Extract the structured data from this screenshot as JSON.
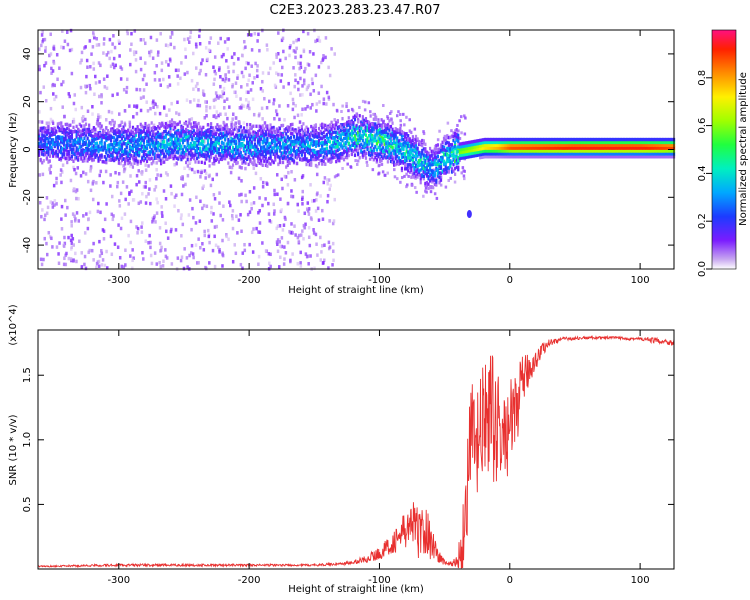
{
  "title": "C2E3.2023.283.23.47.R07",
  "chart_data": [
    {
      "type": "heatmap",
      "xlabel": "Height of straight line (km)",
      "ylabel": "Frequency (Hz)",
      "xlim": [
        -362,
        126
      ],
      "ylim": [
        -50,
        50
      ],
      "xticks": [
        -300,
        -200,
        -100,
        0,
        100
      ],
      "yticks": [
        -40,
        -20,
        0,
        20,
        40
      ],
      "xtick_labels": [
        "-300",
        "-200",
        "-100",
        "0",
        "100"
      ],
      "ytick_labels": [
        "-40",
        "-20",
        "0",
        "20",
        "40"
      ],
      "colorbar": {
        "label": "Normalized spectral amplitude",
        "range": [
          0,
          1
        ],
        "ticks": [
          0.0,
          0.2,
          0.4,
          0.6,
          0.8
        ],
        "tick_labels": [
          "0.0",
          "0.2",
          "0.4",
          "0.6",
          "0.8"
        ],
        "colormap": "rainbow"
      },
      "ridge": {
        "x": [
          -362,
          -300,
          -250,
          -200,
          -150,
          -135,
          -120,
          -100,
          -85,
          -70,
          -60,
          -55,
          -50,
          -45,
          -40,
          -30,
          -20,
          -10,
          0,
          50,
          100,
          126
        ],
        "frequency": [
          3,
          2,
          3,
          2,
          2,
          3,
          6,
          4,
          1,
          -4,
          -8,
          -6,
          -3,
          -2,
          -1,
          0,
          1,
          1,
          1,
          1,
          1,
          1
        ],
        "amplitude": [
          0.3,
          0.35,
          0.4,
          0.35,
          0.35,
          0.4,
          0.5,
          0.5,
          0.45,
          0.45,
          0.4,
          0.45,
          0.45,
          0.5,
          0.6,
          0.65,
          0.75,
          0.8,
          0.9,
          0.95,
          0.95,
          0.9
        ]
      },
      "grid": false
    },
    {
      "type": "line",
      "xlabel": "Height of straight line (km)",
      "ylabel": "SNR (10 * v/v)",
      "y_multiplier_label": "(x10^4)",
      "xlim": [
        -362,
        126
      ],
      "ylim": [
        0,
        1.85
      ],
      "xticks": [
        -300,
        -200,
        -100,
        0,
        100
      ],
      "yticks": [
        0.5,
        1.0,
        1.5
      ],
      "xtick_labels": [
        "-300",
        "-200",
        "-100",
        "0",
        "100"
      ],
      "ytick_labels": [
        "0.5",
        "1.0",
        "1.5"
      ],
      "series": [
        {
          "color": "#e8302f",
          "x": [
            -362,
            -300,
            -200,
            -150,
            -130,
            -120,
            -110,
            -100,
            -90,
            -80,
            -75,
            -70,
            -65,
            -60,
            -55,
            -50,
            -45,
            -40,
            -35,
            -30,
            -25,
            -20,
            -15,
            -10,
            -5,
            0,
            5,
            10,
            15,
            20,
            25,
            30,
            40,
            60,
            80,
            100,
            110,
            120,
            126
          ],
          "y": [
            0.02,
            0.03,
            0.03,
            0.03,
            0.04,
            0.05,
            0.08,
            0.12,
            0.2,
            0.3,
            0.35,
            0.28,
            0.3,
            0.22,
            0.1,
            0.05,
            0.04,
            0.06,
            0.3,
            1.0,
            0.95,
            1.15,
            1.2,
            1.1,
            1.0,
            1.1,
            1.25,
            1.45,
            1.55,
            1.62,
            1.7,
            1.75,
            1.78,
            1.79,
            1.79,
            1.78,
            1.77,
            1.76,
            1.75
          ],
          "noise": [
            0.005,
            0.01,
            0.008,
            0.008,
            0.01,
            0.015,
            0.03,
            0.05,
            0.08,
            0.15,
            0.2,
            0.2,
            0.2,
            0.15,
            0.06,
            0.02,
            0.02,
            0.05,
            0.35,
            0.45,
            0.45,
            0.45,
            0.5,
            0.45,
            0.35,
            0.35,
            0.3,
            0.2,
            0.12,
            0.08,
            0.05,
            0.03,
            0.015,
            0.01,
            0.01,
            0.015,
            0.02,
            0.02,
            0.03
          ]
        }
      ],
      "grid": false
    }
  ]
}
